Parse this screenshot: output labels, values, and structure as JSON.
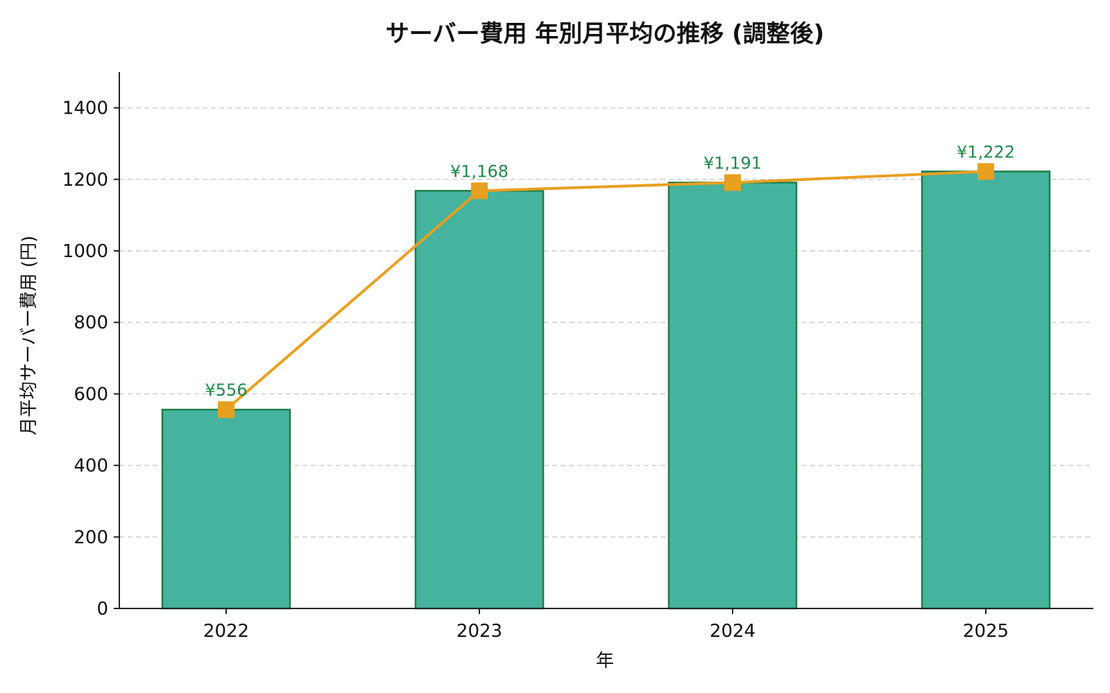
{
  "chart_data": {
    "type": "bar",
    "title": "サーバー費用 年別月平均の推移 (調整後)",
    "xlabel": "年",
    "ylabel": "月平均サーバー費用 (円)",
    "categories": [
      "2022",
      "2023",
      "2024",
      "2025"
    ],
    "series": [
      {
        "values": [
          556,
          1168,
          1191,
          1222
        ],
        "color": "#45b39d",
        "edge_color": "#1e7d45",
        "mark": "bar"
      },
      {
        "values": [
          556,
          1168,
          1191,
          1222
        ],
        "color": "#e8a020",
        "mark": "line-square-marker"
      }
    ],
    "data_labels": [
      "¥556",
      "¥1,168",
      "¥1,191",
      "¥1,222"
    ],
    "data_label_color": "#1e8b4a",
    "ylim": [
      0,
      1500
    ],
    "yticks": [
      0,
      200,
      400,
      600,
      800,
      1000,
      1200,
      1400
    ],
    "grid": "horizontal dashed",
    "legend": "none"
  }
}
